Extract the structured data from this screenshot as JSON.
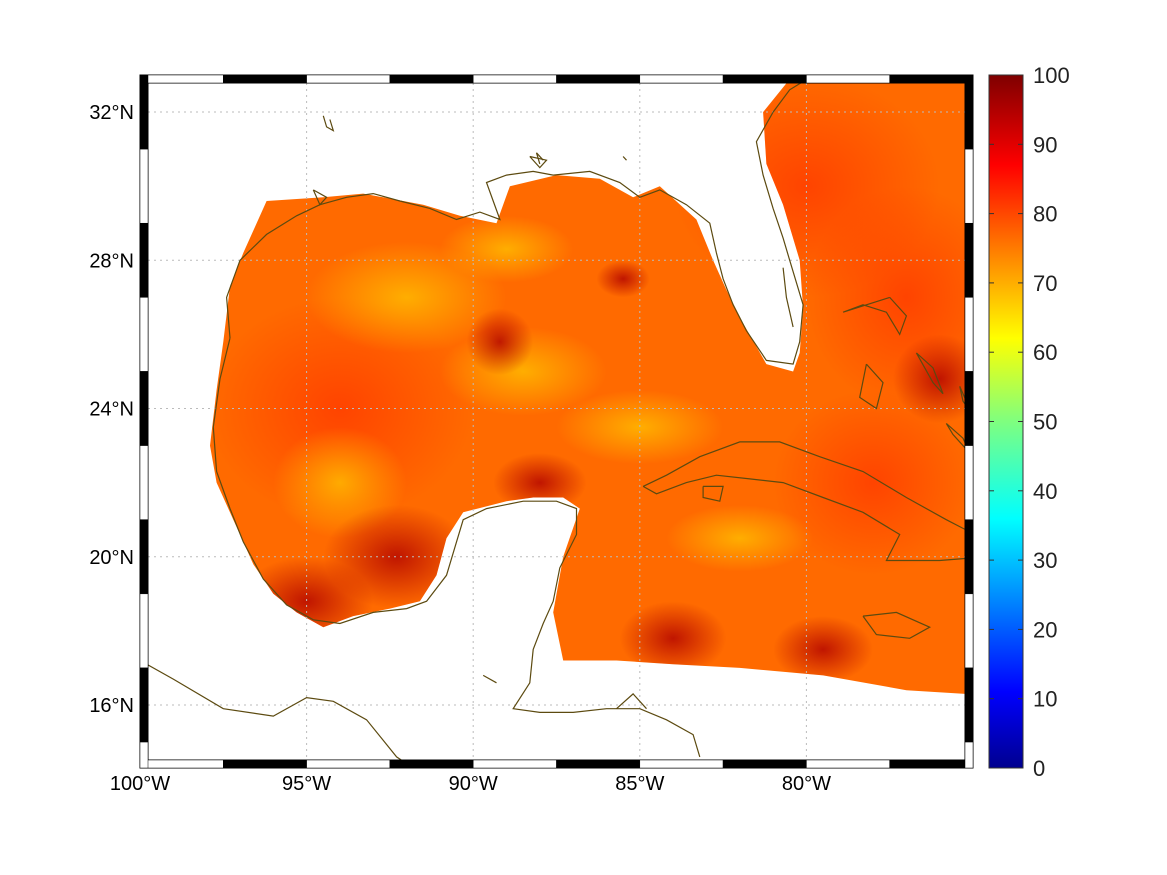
{
  "map": {
    "lon_range": [
      -100,
      -75
    ],
    "lat_range": [
      14.3,
      33
    ],
    "lon_ticks": [
      {
        "value": -100,
        "label": "100°W"
      },
      {
        "value": -95,
        "label": "95°W"
      },
      {
        "value": -90,
        "label": "90°W"
      },
      {
        "value": -85,
        "label": "85°W"
      },
      {
        "value": -80,
        "label": "80°W"
      }
    ],
    "lat_ticks": [
      {
        "value": 32,
        "label": "32°N"
      },
      {
        "value": 28,
        "label": "28°N"
      },
      {
        "value": 24,
        "label": "24°N"
      },
      {
        "value": 20,
        "label": "20°N"
      },
      {
        "value": 16,
        "label": "16°N"
      }
    ],
    "gridlines": true,
    "coastline_color": "#5c4a10",
    "field_colors": {
      "base": "#ff6a00",
      "warm": "#ff3c00",
      "hot": "#d40000",
      "cool": "#ff9a00",
      "yellowish": "#ffb800"
    }
  },
  "colorbar": {
    "min": 0,
    "max": 100,
    "ticks": [
      {
        "value": 100,
        "label": "100"
      },
      {
        "value": 90,
        "label": "90"
      },
      {
        "value": 80,
        "label": "80"
      },
      {
        "value": 70,
        "label": "70"
      },
      {
        "value": 60,
        "label": "60"
      },
      {
        "value": 50,
        "label": "50"
      },
      {
        "value": 40,
        "label": "40"
      },
      {
        "value": 30,
        "label": "30"
      },
      {
        "value": 20,
        "label": "20"
      },
      {
        "value": 10,
        "label": "10"
      },
      {
        "value": 0,
        "label": "0"
      }
    ],
    "colormap": "jet"
  }
}
